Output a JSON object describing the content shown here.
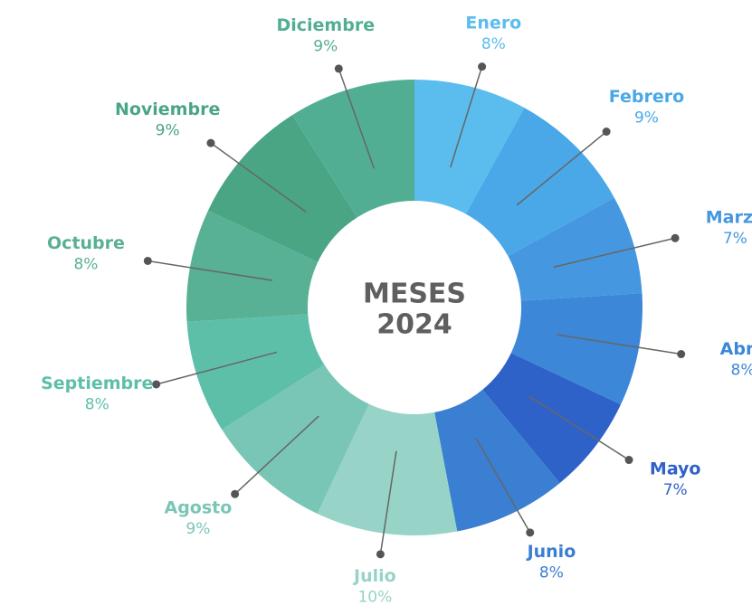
{
  "chart_data": {
    "type": "donut",
    "center_text": [
      "MESES",
      "2024"
    ],
    "categories": [
      "Enero",
      "Febrero",
      "Marzo",
      "Abril",
      "Mayo",
      "Junio",
      "Julio",
      "Agosto",
      "Septiembre",
      "Octubre",
      "Noviembre",
      "Diciembre"
    ],
    "values": [
      8,
      9,
      7,
      8,
      7,
      8,
      10,
      9,
      8,
      8,
      9,
      9
    ],
    "value_labels": [
      "8%",
      "9%",
      "7%",
      "8%",
      "7%",
      "8%",
      "10%",
      "9%",
      "8%",
      "8%",
      "9%",
      "9%"
    ],
    "colors": [
      "#5bbcee",
      "#4aa8e8",
      "#4598e0",
      "#3d87d8",
      "#2f62c8",
      "#3a7fd2",
      "#97d3c6",
      "#7ac6b6",
      "#5ebfa9",
      "#58b095",
      "#4aa585",
      "#52ae93"
    ]
  }
}
